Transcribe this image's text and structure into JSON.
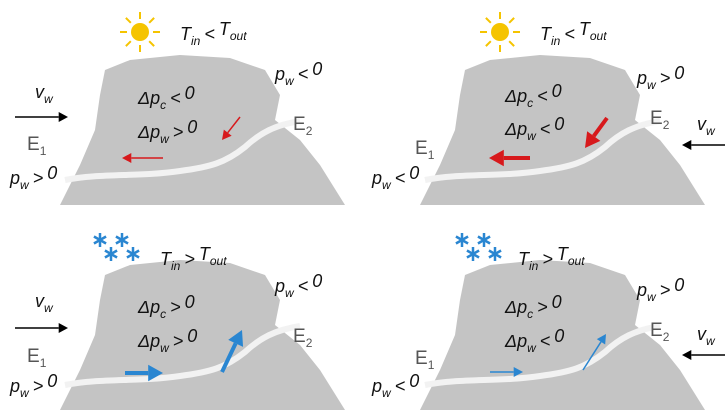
{
  "panels": [
    {
      "temperature": {
        "var": "T",
        "var_sub": "in",
        "relation": "<",
        "ref": "T",
        "ref_sub": "out"
      },
      "pressure_e2": {
        "var": "p",
        "var_sub": "w",
        "relation": "<",
        "ref": "0"
      },
      "pressure_e1": {
        "var": "p",
        "var_sub": "w",
        "relation": ">",
        "ref": "0"
      },
      "delta_pc": {
        "var": "Δp",
        "var_sub": "c",
        "relation": "<",
        "ref": "0"
      },
      "delta_pw": {
        "var": "Δp",
        "var_sub": "w",
        "relation": ">",
        "ref": "0"
      },
      "wind": {
        "var": "v",
        "var_sub": "w"
      },
      "e1": {
        "var": "E",
        "var_sub": "1"
      },
      "e2": {
        "var": "E",
        "var_sub": "2"
      }
    },
    {
      "temperature": {
        "var": "T",
        "var_sub": "in",
        "relation": "<",
        "ref": "T",
        "ref_sub": "out"
      },
      "pressure_e2": {
        "var": "p",
        "var_sub": "w",
        "relation": ">",
        "ref": "0"
      },
      "pressure_e1": {
        "var": "p",
        "var_sub": "w",
        "relation": "<",
        "ref": "0"
      },
      "delta_pc": {
        "var": "Δp",
        "var_sub": "c",
        "relation": "<",
        "ref": "0"
      },
      "delta_pw": {
        "var": "Δp",
        "var_sub": "w",
        "relation": "<",
        "ref": "0"
      },
      "wind": {
        "var": "v",
        "var_sub": "w"
      },
      "e1": {
        "var": "E",
        "var_sub": "1"
      },
      "e2": {
        "var": "E",
        "var_sub": "2"
      }
    },
    {
      "temperature": {
        "var": "T",
        "var_sub": "in",
        "relation": ">",
        "ref": "T",
        "ref_sub": "out"
      },
      "pressure_e2": {
        "var": "p",
        "var_sub": "w",
        "relation": "<",
        "ref": "0"
      },
      "pressure_e1": {
        "var": "p",
        "var_sub": "w",
        "relation": ">",
        "ref": "0"
      },
      "delta_pc": {
        "var": "Δp",
        "var_sub": "c",
        "relation": ">",
        "ref": "0"
      },
      "delta_pw": {
        "var": "Δp",
        "var_sub": "w",
        "relation": ">",
        "ref": "0"
      },
      "wind": {
        "var": "v",
        "var_sub": "w"
      },
      "e1": {
        "var": "E",
        "var_sub": "1"
      },
      "e2": {
        "var": "E",
        "var_sub": "2"
      }
    },
    {
      "temperature": {
        "var": "T",
        "var_sub": "in",
        "relation": ">",
        "ref": "T",
        "ref_sub": "out"
      },
      "pressure_e2": {
        "var": "p",
        "var_sub": "w",
        "relation": ">",
        "ref": "0"
      },
      "pressure_e1": {
        "var": "p",
        "var_sub": "w",
        "relation": "<",
        "ref": "0"
      },
      "delta_pc": {
        "var": "Δp",
        "var_sub": "c",
        "relation": ">",
        "ref": "0"
      },
      "delta_pw": {
        "var": "Δp",
        "var_sub": "w",
        "relation": "<",
        "ref": "0"
      },
      "wind": {
        "var": "v",
        "var_sub": "w"
      },
      "e1": {
        "var": "E",
        "var_sub": "1"
      },
      "e2": {
        "var": "E",
        "var_sub": "2"
      }
    }
  ]
}
